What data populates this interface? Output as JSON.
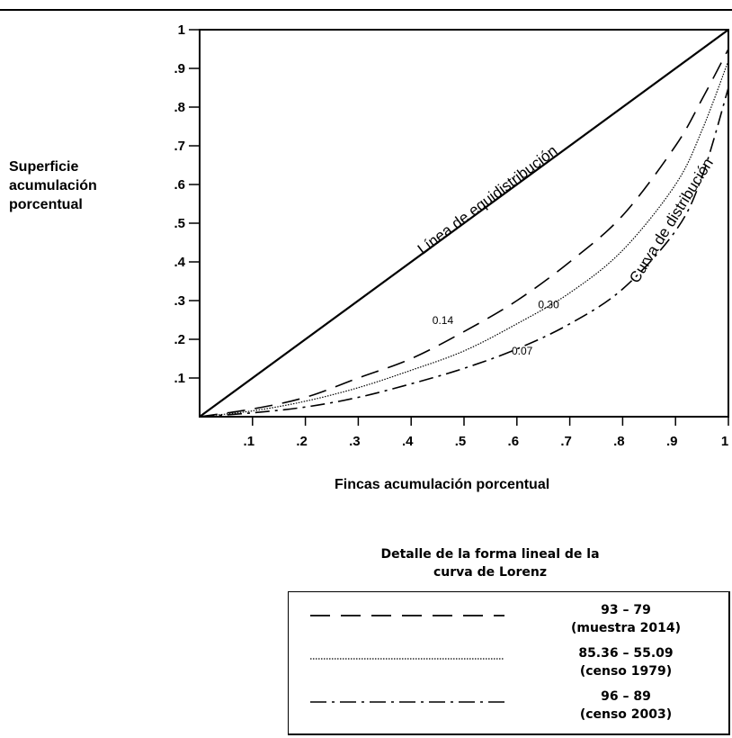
{
  "chart_data": {
    "type": "line",
    "title": "",
    "xlabel": "Fincas acumulación porcentual",
    "ylabel": [
      "Superficie",
      "acumulación",
      "porcentual"
    ],
    "xlim": [
      0,
      1
    ],
    "ylim": [
      0,
      1
    ],
    "x_ticks": [
      ".1",
      ".2",
      ".3",
      ".4",
      ".5",
      ".6",
      ".7",
      ".8",
      ".9",
      "1"
    ],
    "y_ticks": [
      ".1",
      ".2",
      ".3",
      ".4",
      ".5",
      ".6",
      ".7",
      ".8",
      ".9",
      "1"
    ],
    "series": [
      {
        "name": "Línea de equidistribución",
        "style": "solid",
        "x": [
          0,
          1
        ],
        "y": [
          0,
          1
        ]
      },
      {
        "name": "93 – 79 (muestra 2014)",
        "style": "long-dash",
        "x": [
          0,
          0.1,
          0.2,
          0.3,
          0.4,
          0.5,
          0.6,
          0.7,
          0.8,
          0.9,
          0.95,
          1
        ],
        "y": [
          0,
          0.02,
          0.05,
          0.1,
          0.15,
          0.22,
          0.3,
          0.4,
          0.52,
          0.7,
          0.82,
          0.95
        ]
      },
      {
        "name": "85.36 – 55.09 (censo 1979)",
        "style": "dotted",
        "x": [
          0,
          0.1,
          0.2,
          0.3,
          0.4,
          0.5,
          0.6,
          0.7,
          0.8,
          0.9,
          0.95,
          1
        ],
        "y": [
          0,
          0.015,
          0.04,
          0.075,
          0.12,
          0.17,
          0.24,
          0.32,
          0.43,
          0.6,
          0.74,
          0.92
        ]
      },
      {
        "name": "96 – 89 (censo 2003)",
        "style": "dash-dot",
        "x": [
          0,
          0.1,
          0.2,
          0.3,
          0.4,
          0.5,
          0.6,
          0.7,
          0.8,
          0.9,
          0.95,
          1
        ],
        "y": [
          0,
          0.01,
          0.025,
          0.05,
          0.085,
          0.125,
          0.175,
          0.24,
          0.33,
          0.48,
          0.62,
          0.85
        ]
      }
    ],
    "annotations": [
      {
        "text": "Línea de equidistribución",
        "x": 0.55,
        "y": 0.55
      },
      {
        "text": "Curva de distribución",
        "x": 0.9,
        "y": 0.5
      },
      {
        "text": "0.14",
        "x": 0.46,
        "y": 0.24
      },
      {
        "text": "0.30",
        "x": 0.66,
        "y": 0.28
      },
      {
        "text": "0.07",
        "x": 0.61,
        "y": 0.16
      }
    ],
    "grid": false,
    "legend_position": "bottom-right"
  },
  "legend": {
    "title_line1": "Detalle de la forma lineal de la",
    "title_line2": "curva de Lorenz",
    "items": [
      {
        "style": "long-dash",
        "line1": "93 – 79",
        "line2": "(muestra 2014)"
      },
      {
        "style": "dotted",
        "line1": "85.36 – 55.09",
        "line2": "(censo 1979)"
      },
      {
        "style": "dash-dot",
        "line1": "96 – 89",
        "line2": "(censo 2003)"
      }
    ]
  }
}
